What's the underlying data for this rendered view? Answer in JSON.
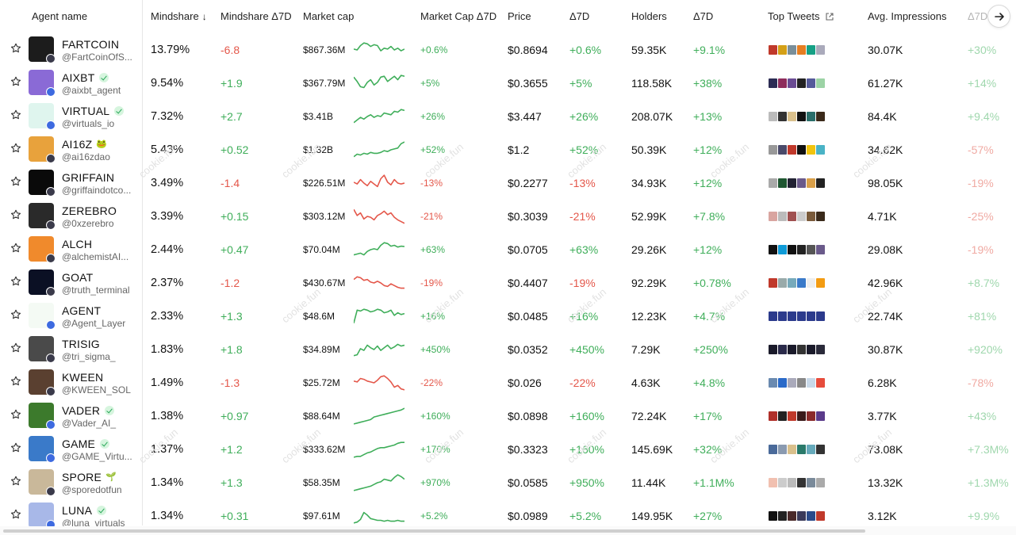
{
  "header": {
    "agent_name": "Agent name",
    "mindshare": "Mindshare",
    "mindshare_d7": "Mindshare Δ7D",
    "market_cap": "Market cap",
    "market_cap_d7": "Market Cap Δ7D",
    "price": "Price",
    "d7": "Δ7D",
    "holders": "Holders",
    "holders_d7": "Δ7D",
    "top_tweets": "Top Tweets",
    "avg_impressions": "Avg. Impressions",
    "impr_d7": "Δ7D"
  },
  "watermark_text": "cookie.fun",
  "colors": {
    "positive": "#3fae5a",
    "negative": "#e4574a"
  },
  "rows": [
    {
      "name": "FARTCOIN",
      "handle": "@FartCoinOfS...",
      "verified": false,
      "mindshare": "13.79%",
      "mindshare_d7": "-6.8",
      "mcap": "$867.36M",
      "mcap_d7": "+0.6%",
      "price": "$0.8694",
      "price_d7": "+0.6%",
      "holders": "59.35K",
      "holders_d7": "+9.1%",
      "impr": "30.07K",
      "impr_d7": "+30%",
      "trend": [
        0.55,
        0.5,
        0.75,
        0.9,
        0.85,
        0.7,
        0.8,
        0.75,
        0.45,
        0.6,
        0.55,
        0.7,
        0.5,
        0.6,
        0.45,
        0.55
      ],
      "avatar": "#1c1c1c",
      "tweets": [
        "#c0392b",
        "#d4a017",
        "#7a8f9a",
        "#e67e22",
        "#16a085",
        "#aab"
      ]
    },
    {
      "name": "AIXBT",
      "handle": "@aixbt_agent",
      "verified": true,
      "mindshare": "9.54%",
      "mindshare_d7": "+1.9",
      "mcap": "$367.79M",
      "mcap_d7": "+5%",
      "price": "$0.3655",
      "price_d7": "+5%",
      "holders": "118.58K",
      "holders_d7": "+38%",
      "impr": "61.27K",
      "impr_d7": "+14%",
      "trend": [
        0.85,
        0.6,
        0.3,
        0.25,
        0.55,
        0.7,
        0.4,
        0.55,
        0.85,
        0.9,
        0.6,
        0.75,
        0.9,
        0.7,
        0.95,
        0.9
      ],
      "avatar": "#8a6ad6",
      "tweets": [
        "#2c2c54",
        "#8e2d5c",
        "#6a4c93",
        "#222",
        "#555a9a",
        "#9cd3a5"
      ]
    },
    {
      "name": "VIRTUAL",
      "handle": "@virtuals_io",
      "verified": true,
      "mindshare": "7.32%",
      "mindshare_d7": "+2.7",
      "mcap": "$3.41B",
      "mcap_d7": "+26%",
      "price": "$3.447",
      "price_d7": "+26%",
      "holders": "208.07K",
      "holders_d7": "+13%",
      "impr": "84.4K",
      "impr_d7": "+9.4%",
      "trend": [
        0.15,
        0.3,
        0.45,
        0.35,
        0.5,
        0.6,
        0.45,
        0.55,
        0.5,
        0.7,
        0.65,
        0.6,
        0.8,
        0.75,
        0.9,
        0.85
      ],
      "avatar": "#dff5ee",
      "tweets": [
        "#bbb",
        "#333",
        "#d9c08c",
        "#111",
        "#2a6e6a",
        "#3b2a1a"
      ]
    },
    {
      "name": "AI16Z",
      "handle": "@ai16zdao",
      "verified": false,
      "extra": "🐸",
      "mindshare": "5.43%",
      "mindshare_d7": "+0.52",
      "mcap": "$1.32B",
      "mcap_d7": "+52%",
      "price": "$1.2",
      "price_d7": "+52%",
      "holders": "50.39K",
      "holders_d7": "+12%",
      "impr": "34.62K",
      "impr_d7": "-57%",
      "trend": [
        0.1,
        0.25,
        0.2,
        0.3,
        0.25,
        0.35,
        0.3,
        0.3,
        0.35,
        0.45,
        0.4,
        0.5,
        0.55,
        0.6,
        0.85,
        0.95
      ],
      "avatar": "#e8a23c",
      "tweets": [
        "#999",
        "#4a4a6a",
        "#c0392b",
        "#111",
        "#f1c40f",
        "#4ab3c6"
      ]
    },
    {
      "name": "GRIFFAIN",
      "handle": "@griffaindotco...",
      "verified": false,
      "mindshare": "3.49%",
      "mindshare_d7": "-1.4",
      "mcap": "$226.51M",
      "mcap_d7": "-13%",
      "price": "$0.2277",
      "price_d7": "-13%",
      "holders": "34.93K",
      "holders_d7": "+12%",
      "impr": "98.05K",
      "impr_d7": "-19%",
      "trend": [
        0.55,
        0.45,
        0.7,
        0.5,
        0.35,
        0.6,
        0.45,
        0.3,
        0.75,
        0.95,
        0.55,
        0.4,
        0.7,
        0.5,
        0.45,
        0.5
      ],
      "avatar": "#0a0a0a",
      "tweets": [
        "#aaa",
        "#1e5631",
        "#223",
        "#6a5a8a",
        "#d9a04a",
        "#222"
      ]
    },
    {
      "name": "ZEREBRO",
      "handle": "@0xzerebro",
      "verified": false,
      "mindshare": "3.39%",
      "mindshare_d7": "+0.15",
      "mcap": "$303.12M",
      "mcap_d7": "-21%",
      "price": "$0.3039",
      "price_d7": "-21%",
      "holders": "52.99K",
      "holders_d7": "+7.8%",
      "impr": "4.71K",
      "impr_d7": "-25%",
      "trend": [
        0.9,
        0.55,
        0.7,
        0.35,
        0.5,
        0.45,
        0.3,
        0.55,
        0.65,
        0.8,
        0.6,
        0.7,
        0.45,
        0.3,
        0.2,
        0.1
      ],
      "avatar": "#2a2a2a",
      "tweets": [
        "#d9a5a0",
        "#bbb",
        "#a05050",
        "#ccc",
        "#7a5a3a",
        "#3a2a1a"
      ]
    },
    {
      "name": "ALCH",
      "handle": "@alchemistAI...",
      "verified": false,
      "mindshare": "2.44%",
      "mindshare_d7": "+0.47",
      "mcap": "$70.04M",
      "mcap_d7": "+63%",
      "price": "$0.0705",
      "price_d7": "+63%",
      "holders": "29.26K",
      "holders_d7": "+12%",
      "impr": "29.08K",
      "impr_d7": "-19%",
      "trend": [
        0.2,
        0.25,
        0.3,
        0.2,
        0.4,
        0.5,
        0.55,
        0.5,
        0.75,
        0.9,
        0.85,
        0.7,
        0.75,
        0.65,
        0.7,
        0.68
      ],
      "avatar": "#f08a2c",
      "tweets": [
        "#111",
        "#0f9bd7",
        "#111",
        "#222",
        "#555",
        "#6a5a8a"
      ]
    },
    {
      "name": "GOAT",
      "handle": "@truth_terminal",
      "verified": false,
      "mindshare": "2.37%",
      "mindshare_d7": "-1.2",
      "mcap": "$430.67M",
      "mcap_d7": "-19%",
      "price": "$0.4407",
      "price_d7": "-19%",
      "holders": "92.29K",
      "holders_d7": "+0.78%",
      "impr": "42.96K",
      "impr_d7": "+8.7%",
      "trend": [
        0.7,
        0.85,
        0.8,
        0.65,
        0.7,
        0.55,
        0.5,
        0.6,
        0.5,
        0.35,
        0.3,
        0.45,
        0.35,
        0.25,
        0.2,
        0.2
      ],
      "avatar": "#0b1024",
      "tweets": [
        "#c0392b",
        "#9aa",
        "#7ab",
        "#3a7ac9",
        "#eee",
        "#f39c12"
      ]
    },
    {
      "name": "AGENT",
      "handle": "@Agent_Layer",
      "verified": false,
      "mindshare": "2.33%",
      "mindshare_d7": "+1.3",
      "mcap": "$48.6M",
      "mcap_d7": "+16%",
      "price": "$0.0485",
      "price_d7": "+16%",
      "holders": "12.23K",
      "holders_d7": "+4.7%",
      "impr": "22.74K",
      "impr_d7": "+81%",
      "trend": [
        0.1,
        0.85,
        0.8,
        0.9,
        0.85,
        0.75,
        0.8,
        0.9,
        0.85,
        0.7,
        0.75,
        0.85,
        0.55,
        0.7,
        0.6,
        0.65
      ],
      "avatar": "#f4faf4",
      "tweets": [
        "#2b3a8c",
        "#2b3a8c",
        "#2b3a8c",
        "#2b3a8c",
        "#2b3a8c",
        "#2b3a8c"
      ]
    },
    {
      "name": "TRISIG",
      "handle": "@tri_sigma_",
      "verified": false,
      "mindshare": "1.83%",
      "mindshare_d7": "+1.8",
      "mcap": "$34.89M",
      "mcap_d7": "+450%",
      "price": "$0.0352",
      "price_d7": "+450%",
      "holders": "7.29K",
      "holders_d7": "+250%",
      "impr": "30.87K",
      "impr_d7": "+920%",
      "trend": [
        0.15,
        0.2,
        0.55,
        0.45,
        0.75,
        0.6,
        0.5,
        0.7,
        0.45,
        0.6,
        0.75,
        0.55,
        0.65,
        0.8,
        0.7,
        0.75
      ],
      "avatar": "#4a4a4a",
      "tweets": [
        "#1a1a2a",
        "#2a2a4a",
        "#1a1a2a",
        "#333",
        "#1a1a2a",
        "#2a2a3a"
      ]
    },
    {
      "name": "KWEEN",
      "handle": "@KWEEN_SOL",
      "verified": false,
      "mindshare": "1.49%",
      "mindshare_d7": "-1.3",
      "mcap": "$25.72M",
      "mcap_d7": "-22%",
      "price": "$0.026",
      "price_d7": "-22%",
      "holders": "4.63K",
      "holders_d7": "+4.8%",
      "impr": "6.28K",
      "impr_d7": "-78%",
      "trend": [
        0.6,
        0.55,
        0.75,
        0.7,
        0.6,
        0.55,
        0.5,
        0.65,
        0.85,
        0.9,
        0.75,
        0.55,
        0.25,
        0.35,
        0.15,
        0.1
      ],
      "avatar": "#5a4030",
      "tweets": [
        "#6a8ab0",
        "#2a6ac9",
        "#aab",
        "#888",
        "#c9d9e9",
        "#e74c3c"
      ]
    },
    {
      "name": "VADER",
      "handle": "@Vader_AI_",
      "verified": true,
      "mindshare": "1.38%",
      "mindshare_d7": "+0.97",
      "mcap": "$88.64M",
      "mcap_d7": "+160%",
      "price": "$0.0898",
      "price_d7": "+160%",
      "holders": "72.24K",
      "holders_d7": "+17%",
      "impr": "3.77K",
      "impr_d7": "+43%",
      "trend": [
        0.05,
        0.1,
        0.15,
        0.2,
        0.25,
        0.3,
        0.45,
        0.5,
        0.55,
        0.6,
        0.65,
        0.7,
        0.75,
        0.8,
        0.85,
        0.95
      ],
      "avatar": "#3c7a2c",
      "tweets": [
        "#b0302a",
        "#222",
        "#c0392b",
        "#3a1a1a",
        "#8a2a2a",
        "#5a3a8a"
      ]
    },
    {
      "name": "GAME",
      "handle": "@GAME_Virtu...",
      "verified": true,
      "mindshare": "1.37%",
      "mindshare_d7": "+1.2",
      "mcap": "$333.62M",
      "mcap_d7": "+170%",
      "price": "$0.3323",
      "price_d7": "+160%",
      "holders": "145.69K",
      "holders_d7": "+32%",
      "impr": "73.08K",
      "impr_d7": "+7.3M%",
      "trend": [
        0.05,
        0.1,
        0.1,
        0.2,
        0.3,
        0.35,
        0.45,
        0.55,
        0.6,
        0.6,
        0.65,
        0.7,
        0.75,
        0.85,
        0.9,
        0.9
      ],
      "avatar": "#3a7ac9",
      "tweets": [
        "#4a6a9a",
        "#8a9ab0",
        "#d9c08c",
        "#2a7a6a",
        "#6ab",
        "#333"
      ]
    },
    {
      "name": "SPORE",
      "handle": "@sporedotfun",
      "verified": false,
      "extra": "🌱",
      "mindshare": "1.34%",
      "mindshare_d7": "+1.3",
      "mcap": "$58.35M",
      "mcap_d7": "+970%",
      "price": "$0.0585",
      "price_d7": "+950%",
      "holders": "11.44K",
      "holders_d7": "+1.1M%",
      "impr": "13.32K",
      "impr_d7": "+1.3M%",
      "trend": [
        0.05,
        0.1,
        0.15,
        0.2,
        0.25,
        0.3,
        0.4,
        0.5,
        0.55,
        0.7,
        0.65,
        0.6,
        0.8,
        0.95,
        0.85,
        0.7
      ],
      "avatar": "#c9b89a",
      "tweets": [
        "#f1c0b0",
        "#ccc",
        "#bbb",
        "#333",
        "#7a8a9a",
        "#aaa"
      ]
    },
    {
      "name": "LUNA",
      "handle": "@luna_virtuals",
      "verified": true,
      "mindshare": "1.34%",
      "mindshare_d7": "+0.31",
      "mcap": "$97.61M",
      "mcap_d7": "+5.2%",
      "price": "$0.0989",
      "price_d7": "+5.2%",
      "holders": "149.95K",
      "holders_d7": "+27%",
      "impr": "3.12K",
      "impr_d7": "+9.9%",
      "trend": [
        0.1,
        0.15,
        0.3,
        0.7,
        0.55,
        0.35,
        0.3,
        0.25,
        0.25,
        0.2,
        0.25,
        0.2,
        0.2,
        0.25,
        0.2,
        0.2
      ],
      "avatar": "#a8b8e8",
      "tweets": [
        "#111",
        "#222",
        "#4a2a2a",
        "#3a3a5a",
        "#2a4a8a",
        "#c0392b"
      ]
    }
  ]
}
